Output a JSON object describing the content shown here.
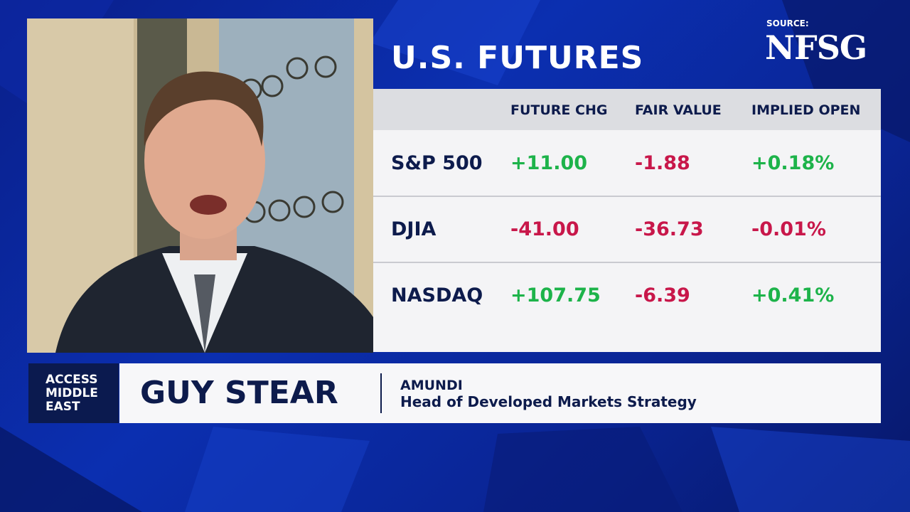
{
  "source_label": "SOURCE:",
  "source": "NFSG",
  "title": "U.S. FUTURES",
  "table": {
    "columns": [
      "FUTURE CHG",
      "FAIR VALUE",
      "IMPLIED OPEN"
    ],
    "rows": [
      [
        "S&P 500",
        "+11.00",
        "-1.88",
        "+0.18%"
      ],
      [
        "DJIA",
        "-41.00",
        "-36.73",
        "-0.01%"
      ],
      [
        "NASDAQ",
        "+107.75",
        "-6.39",
        "+0.41%"
      ]
    ]
  },
  "lower_third": {
    "show": [
      "ACCESS",
      "MIDDLE",
      "EAST"
    ],
    "name": "GUY STEAR",
    "company": "AMUNDI",
    "role": "Head of Developed Markets Strategy"
  }
}
